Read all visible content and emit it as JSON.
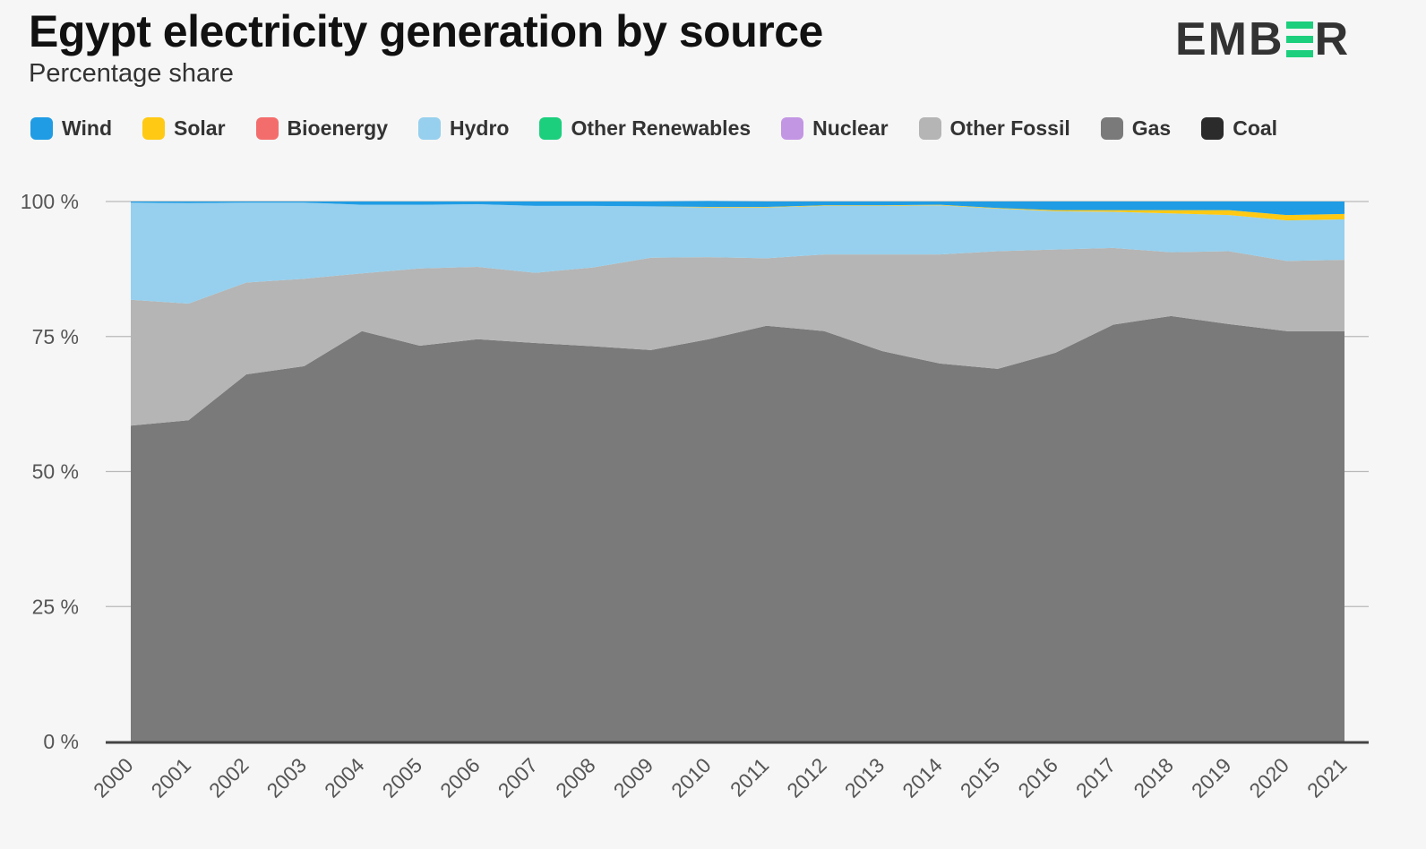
{
  "title": "Egypt electricity generation by source",
  "subtitle": "Percentage share",
  "brand": "EMBER",
  "chart_data": {
    "type": "area",
    "stacked": true,
    "title": "Egypt electricity generation by source",
    "subtitle": "Percentage share",
    "xlabel": "",
    "ylabel": "",
    "ylim": [
      0,
      100
    ],
    "yticks": [
      "0 %",
      "25 %",
      "50 %",
      "75 %",
      "100 %"
    ],
    "ytick_values": [
      0,
      25,
      50,
      75,
      100
    ],
    "x": [
      "2000",
      "2001",
      "2002",
      "2003",
      "2004",
      "2005",
      "2006",
      "2007",
      "2008",
      "2009",
      "2010",
      "2011",
      "2012",
      "2013",
      "2014",
      "2015",
      "2016",
      "2017",
      "2018",
      "2019",
      "2020",
      "2021"
    ],
    "legend_position": "top",
    "grid": true,
    "series": [
      {
        "name": "Coal",
        "color": "#2b2b2b",
        "values": [
          0,
          0,
          0,
          0,
          0,
          0,
          0,
          0,
          0,
          0,
          0,
          0,
          0,
          0,
          0,
          0,
          0,
          0,
          0,
          0,
          0,
          0
        ]
      },
      {
        "name": "Gas",
        "color": "#7a7a7a",
        "values": [
          58.5,
          59.5,
          68.0,
          69.5,
          76.0,
          73.3,
          74.5,
          73.8,
          73.2,
          72.5,
          74.5,
          77.0,
          76.0,
          72.3,
          70.0,
          69.0,
          72.0,
          77.2,
          78.8,
          77.3,
          76.0,
          76.0
        ]
      },
      {
        "name": "Other Fossil",
        "color": "#b5b5b5",
        "values": [
          23.3,
          21.6,
          17.0,
          16.2,
          10.7,
          14.3,
          13.4,
          13.0,
          14.6,
          17.1,
          15.2,
          12.5,
          14.2,
          17.9,
          20.2,
          21.8,
          19.1,
          14.2,
          11.8,
          13.5,
          13.0,
          13.2
        ]
      },
      {
        "name": "Nuclear",
        "color": "#c396e4",
        "values": [
          0,
          0,
          0,
          0,
          0,
          0,
          0,
          0,
          0,
          0,
          0,
          0,
          0,
          0,
          0,
          0,
          0,
          0,
          0,
          0,
          0,
          0
        ]
      },
      {
        "name": "Other Renewables",
        "color": "#1ccf7d",
        "values": [
          0,
          0,
          0,
          0,
          0,
          0,
          0,
          0,
          0,
          0,
          0,
          0,
          0,
          0,
          0,
          0,
          0,
          0,
          0,
          0,
          0,
          0
        ]
      },
      {
        "name": "Hydro",
        "color": "#96d0ee",
        "values": [
          18.0,
          18.6,
          14.8,
          14.1,
          12.7,
          11.8,
          11.6,
          12.4,
          11.4,
          9.5,
          9.2,
          9.4,
          9.0,
          9.0,
          9.1,
          7.9,
          7.1,
          6.7,
          7.2,
          6.7,
          7.5,
          7.5
        ]
      },
      {
        "name": "Bioenergy",
        "color": "#f46d6d",
        "values": [
          0,
          0,
          0,
          0,
          0,
          0,
          0,
          0,
          0,
          0,
          0,
          0,
          0,
          0,
          0,
          0,
          0,
          0,
          0,
          0,
          0,
          0
        ]
      },
      {
        "name": "Solar",
        "color": "#ffc914",
        "values": [
          0,
          0,
          0,
          0,
          0,
          0,
          0,
          0,
          0,
          0,
          0.1,
          0.1,
          0.1,
          0.1,
          0.1,
          0.1,
          0.2,
          0.3,
          0.6,
          0.9,
          1.0,
          1.0
        ]
      },
      {
        "name": "Wind",
        "color": "#1f9ce4",
        "values": [
          0.2,
          0.3,
          0.2,
          0.2,
          0.6,
          0.6,
          0.5,
          0.8,
          0.8,
          0.9,
          1.1,
          1.0,
          0.7,
          0.7,
          0.6,
          1.2,
          1.6,
          1.6,
          1.6,
          1.6,
          2.5,
          2.3
        ]
      }
    ]
  },
  "legend": [
    {
      "label": "Wind",
      "color": "#1f9ce4"
    },
    {
      "label": "Solar",
      "color": "#ffc914"
    },
    {
      "label": "Bioenergy",
      "color": "#f46d6d"
    },
    {
      "label": "Hydro",
      "color": "#96d0ee"
    },
    {
      "label": "Other Renewables",
      "color": "#1ccf7d"
    },
    {
      "label": "Nuclear",
      "color": "#c396e4"
    },
    {
      "label": "Other Fossil",
      "color": "#b5b5b5"
    },
    {
      "label": "Gas",
      "color": "#7a7a7a"
    },
    {
      "label": "Coal",
      "color": "#2b2b2b"
    }
  ]
}
